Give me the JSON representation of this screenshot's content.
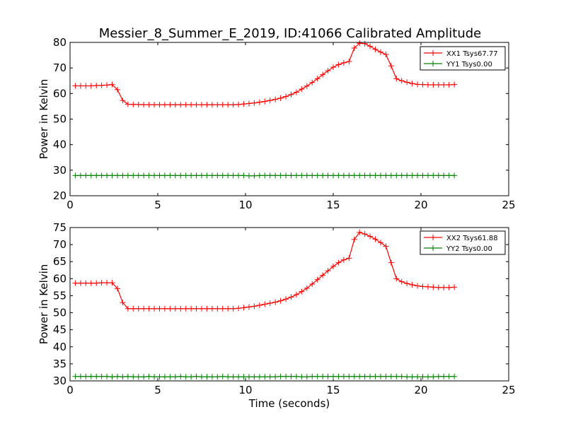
{
  "title": "Messier_8_Summer_E_2019, ID:41066 Calibrated Amplitude",
  "colors": {
    "xx": "#ff0000",
    "yy": "#008000",
    "axes": "#000000",
    "background": "#ffffff"
  },
  "chart_data": [
    {
      "type": "line",
      "title": "Messier_8_Summer_E_2019, ID:41066 Calibrated Amplitude",
      "xlabel": "",
      "ylabel": "Power in Kelvin",
      "xlim": [
        0,
        25
      ],
      "ylim": [
        20,
        80
      ],
      "xticks": [
        0,
        5,
        10,
        15,
        20,
        25
      ],
      "yticks": [
        20,
        30,
        40,
        50,
        60,
        70,
        80
      ],
      "grid": false,
      "legend_position": "top-right",
      "marker": "+",
      "series": [
        {
          "name": "XX1 Tsys67.77",
          "color": "#ff0000",
          "x": [
            0.3,
            0.6,
            0.9,
            1.2,
            1.5,
            1.8,
            2.1,
            2.4,
            2.7,
            3.0,
            3.3,
            3.6,
            3.9,
            4.2,
            4.5,
            4.8,
            5.1,
            5.4,
            5.7,
            6.0,
            6.3,
            6.6,
            6.9,
            7.2,
            7.5,
            7.8,
            8.1,
            8.4,
            8.7,
            9.0,
            9.3,
            9.6,
            9.9,
            10.2,
            10.5,
            10.8,
            11.1,
            11.4,
            11.7,
            12.0,
            12.3,
            12.6,
            12.9,
            13.2,
            13.5,
            13.8,
            14.1,
            14.4,
            14.7,
            15.0,
            15.3,
            15.6,
            15.9,
            16.2,
            16.5,
            16.8,
            17.1,
            17.4,
            17.7,
            18.0,
            18.3,
            18.6,
            18.9,
            19.2,
            19.5,
            19.8,
            20.1,
            20.4,
            20.7,
            21.0,
            21.3,
            21.6,
            21.9
          ],
          "y": [
            63.0,
            63.0,
            63.0,
            63.0,
            63.1,
            63.2,
            63.3,
            63.5,
            61.5,
            57.3,
            55.8,
            55.7,
            55.7,
            55.6,
            55.6,
            55.6,
            55.6,
            55.6,
            55.6,
            55.6,
            55.6,
            55.6,
            55.6,
            55.6,
            55.6,
            55.6,
            55.6,
            55.6,
            55.6,
            55.6,
            55.6,
            55.7,
            55.9,
            56.1,
            56.3,
            56.6,
            56.9,
            57.3,
            57.7,
            58.2,
            58.8,
            59.6,
            60.5,
            61.7,
            62.9,
            64.3,
            65.8,
            67.4,
            68.9,
            70.3,
            71.3,
            72.0,
            72.5,
            77.8,
            79.7,
            79.5,
            78.5,
            77.3,
            76.2,
            75.3,
            70.8,
            65.8,
            65.0,
            64.4,
            63.9,
            63.6,
            63.5,
            63.4,
            63.4,
            63.4,
            63.4,
            63.4,
            63.5
          ]
        },
        {
          "name": "YY1 Tsys0.00",
          "color": "#008000",
          "x": [
            0.3,
            0.6,
            0.9,
            1.2,
            1.5,
            1.8,
            2.1,
            2.4,
            2.7,
            3.0,
            3.3,
            3.6,
            3.9,
            4.2,
            4.5,
            4.8,
            5.1,
            5.4,
            5.7,
            6.0,
            6.3,
            6.6,
            6.9,
            7.2,
            7.5,
            7.8,
            8.1,
            8.4,
            8.7,
            9.0,
            9.3,
            9.6,
            9.9,
            10.2,
            10.5,
            10.8,
            11.1,
            11.4,
            11.7,
            12.0,
            12.3,
            12.6,
            12.9,
            13.2,
            13.5,
            13.8,
            14.1,
            14.4,
            14.7,
            15.0,
            15.3,
            15.6,
            15.9,
            16.2,
            16.5,
            16.8,
            17.1,
            17.4,
            17.7,
            18.0,
            18.3,
            18.6,
            18.9,
            19.2,
            19.5,
            19.8,
            20.1,
            20.4,
            20.7,
            21.0,
            21.3,
            21.6,
            21.9
          ],
          "y": [
            27.9,
            27.9,
            27.9,
            27.9,
            27.9,
            27.9,
            27.9,
            27.9,
            27.9,
            27.9,
            27.9,
            27.9,
            27.9,
            27.9,
            27.9,
            27.9,
            27.9,
            27.9,
            27.9,
            27.9,
            27.9,
            27.9,
            27.9,
            27.9,
            27.9,
            27.9,
            27.9,
            27.9,
            27.9,
            27.9,
            27.9,
            27.9,
            27.9,
            27.8,
            27.8,
            27.9,
            27.9,
            27.9,
            27.9,
            27.9,
            27.9,
            27.9,
            27.9,
            27.9,
            27.9,
            27.9,
            27.9,
            27.9,
            27.9,
            27.9,
            27.9,
            27.9,
            27.9,
            27.9,
            27.9,
            27.9,
            27.9,
            27.9,
            27.9,
            27.9,
            27.9,
            27.9,
            27.9,
            27.9,
            27.9,
            27.9,
            27.9,
            27.9,
            27.9,
            27.9,
            27.9,
            27.9,
            27.9
          ]
        }
      ]
    },
    {
      "type": "line",
      "title": "",
      "xlabel": "Time (seconds)",
      "ylabel": "Power in Kelvin",
      "xlim": [
        0,
        25
      ],
      "ylim": [
        30,
        75
      ],
      "xticks": [
        0,
        5,
        10,
        15,
        20,
        25
      ],
      "yticks": [
        30,
        35,
        40,
        45,
        50,
        55,
        60,
        65,
        70,
        75
      ],
      "grid": false,
      "legend_position": "top-right",
      "marker": "+",
      "series": [
        {
          "name": "XX2 Tsys61.88",
          "color": "#ff0000",
          "x": [
            0.3,
            0.6,
            0.9,
            1.2,
            1.5,
            1.8,
            2.1,
            2.4,
            2.7,
            3.0,
            3.3,
            3.6,
            3.9,
            4.2,
            4.5,
            4.8,
            5.1,
            5.4,
            5.7,
            6.0,
            6.3,
            6.6,
            6.9,
            7.2,
            7.5,
            7.8,
            8.1,
            8.4,
            8.7,
            9.0,
            9.3,
            9.6,
            9.9,
            10.2,
            10.5,
            10.8,
            11.1,
            11.4,
            11.7,
            12.0,
            12.3,
            12.6,
            12.9,
            13.2,
            13.5,
            13.8,
            14.1,
            14.4,
            14.7,
            15.0,
            15.3,
            15.6,
            15.9,
            16.2,
            16.5,
            16.8,
            17.1,
            17.4,
            17.7,
            18.0,
            18.3,
            18.6,
            18.9,
            19.2,
            19.5,
            19.8,
            20.1,
            20.4,
            20.7,
            21.0,
            21.3,
            21.6,
            21.9
          ],
          "y": [
            58.7,
            58.7,
            58.7,
            58.7,
            58.7,
            58.8,
            58.8,
            58.8,
            57.1,
            53.0,
            51.2,
            51.2,
            51.2,
            51.2,
            51.2,
            51.2,
            51.2,
            51.2,
            51.2,
            51.2,
            51.2,
            51.2,
            51.2,
            51.2,
            51.2,
            51.2,
            51.2,
            51.2,
            51.2,
            51.2,
            51.2,
            51.3,
            51.5,
            51.7,
            51.9,
            52.2,
            52.5,
            52.8,
            53.1,
            53.5,
            54.0,
            54.6,
            55.3,
            56.2,
            57.2,
            58.4,
            59.7,
            61.0,
            62.3,
            63.6,
            64.7,
            65.5,
            66.0,
            71.5,
            73.6,
            73.1,
            72.4,
            71.6,
            70.6,
            69.5,
            64.7,
            60.0,
            59.1,
            58.6,
            58.2,
            57.9,
            57.7,
            57.6,
            57.5,
            57.4,
            57.4,
            57.4,
            57.5
          ]
        },
        {
          "name": "YY2 Tsys0.00",
          "color": "#008000",
          "x": [
            0.3,
            0.6,
            0.9,
            1.2,
            1.5,
            1.8,
            2.1,
            2.4,
            2.7,
            3.0,
            3.3,
            3.6,
            3.9,
            4.2,
            4.5,
            4.8,
            5.1,
            5.4,
            5.7,
            6.0,
            6.3,
            6.6,
            6.9,
            7.2,
            7.5,
            7.8,
            8.1,
            8.4,
            8.7,
            9.0,
            9.3,
            9.6,
            9.9,
            10.2,
            10.5,
            10.8,
            11.1,
            11.4,
            11.7,
            12.0,
            12.3,
            12.6,
            12.9,
            13.2,
            13.5,
            13.8,
            14.1,
            14.4,
            14.7,
            15.0,
            15.3,
            15.6,
            15.9,
            16.2,
            16.5,
            16.8,
            17.1,
            17.4,
            17.7,
            18.0,
            18.3,
            18.6,
            18.9,
            19.2,
            19.5,
            19.8,
            20.1,
            20.4,
            20.7,
            21.0,
            21.3,
            21.6,
            21.9
          ],
          "y": [
            31.3,
            31.3,
            31.3,
            31.3,
            31.3,
            31.3,
            31.3,
            31.2,
            31.3,
            31.2,
            31.3,
            31.2,
            31.2,
            31.2,
            31.3,
            31.2,
            31.2,
            31.2,
            31.2,
            31.2,
            31.3,
            31.2,
            31.2,
            31.3,
            31.2,
            31.2,
            31.2,
            31.2,
            31.3,
            31.2,
            31.2,
            31.2,
            31.2,
            31.2,
            31.2,
            31.2,
            31.2,
            31.2,
            31.2,
            31.3,
            31.3,
            31.3,
            31.3,
            31.2,
            31.2,
            31.3,
            31.3,
            31.3,
            31.3,
            31.3,
            31.3,
            31.3,
            31.3,
            31.3,
            31.3,
            31.3,
            31.3,
            31.3,
            31.3,
            31.3,
            31.3,
            31.3,
            31.3,
            31.2,
            31.2,
            31.2,
            31.2,
            31.2,
            31.2,
            31.3,
            31.3,
            31.3,
            31.3
          ]
        }
      ]
    }
  ]
}
